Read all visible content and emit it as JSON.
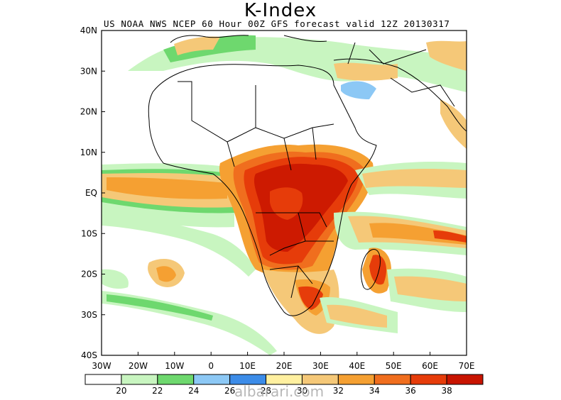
{
  "title": "K-Index",
  "subtitle": "US NOAA NWS NCEP 60 Hour 00Z GFS forecast valid 12Z 20130317",
  "lon_labels": [
    "30W",
    "20W",
    "10W",
    "0",
    "10E",
    "20E",
    "30E",
    "40E",
    "50E",
    "60E",
    "70E"
  ],
  "lat_labels": [
    "40N",
    "30N",
    "20N",
    "10N",
    "EQ",
    "10S",
    "20S",
    "30S",
    "40S"
  ],
  "colorbar": {
    "colors": [
      "#ffffff",
      "#c8f5c0",
      "#6ed86e",
      "#8cc8f5",
      "#3c8ce8",
      "#fff0a0",
      "#f5c878",
      "#f5a032",
      "#f06e1e",
      "#e63c0a",
      "#c81400"
    ],
    "labels": [
      "20",
      "22",
      "24",
      "26",
      "28",
      "30",
      "32",
      "34",
      "36",
      "38"
    ]
  },
  "watermark": "albarari.com"
}
